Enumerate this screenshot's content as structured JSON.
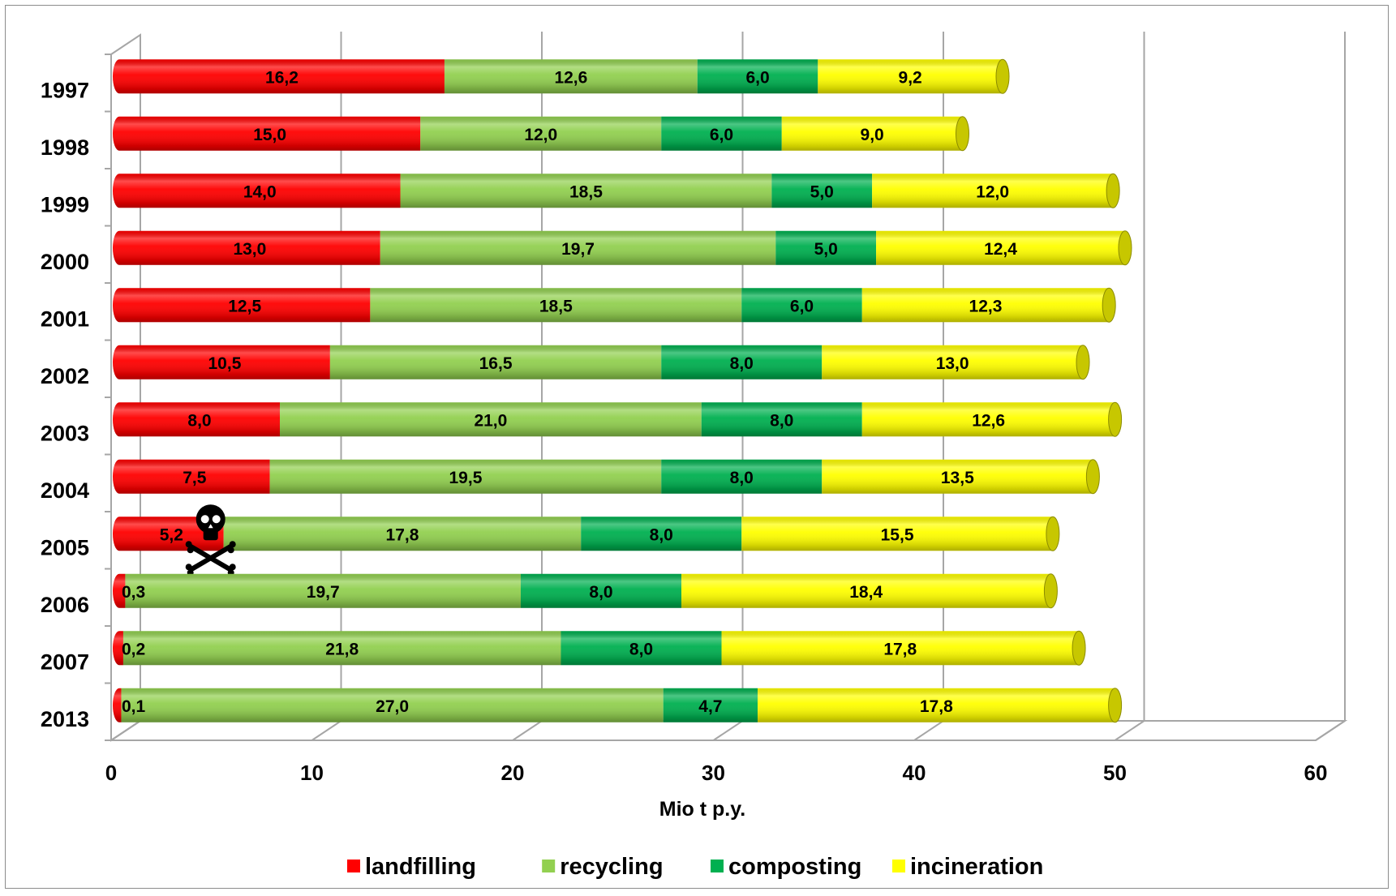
{
  "chart_data": {
    "type": "bar",
    "orientation": "horizontal",
    "stacked": true,
    "three_d": true,
    "categories": [
      "1997",
      "1998",
      "1999",
      "2000",
      "2001",
      "2002",
      "2003",
      "2004",
      "2005",
      "2006",
      "2007",
      "2013"
    ],
    "series": [
      {
        "name": "landfilling",
        "color": "#ff0000",
        "values": [
          16.2,
          15.0,
          14.0,
          13.0,
          12.5,
          10.5,
          8.0,
          7.5,
          5.2,
          0.3,
          0.2,
          0.1
        ],
        "labels": [
          "16,2",
          "15,0",
          "14,0",
          "13,0",
          "12,5",
          "10,5",
          "8,0",
          "7,5",
          "5,2",
          "0,3",
          "0,2",
          "0,1"
        ]
      },
      {
        "name": "recycling",
        "color": "#92d050",
        "values": [
          12.6,
          12.0,
          18.5,
          19.7,
          18.5,
          16.5,
          21.0,
          19.5,
          17.8,
          19.7,
          21.8,
          27.0
        ],
        "labels": [
          "12,6",
          "12,0",
          "18,5",
          "19,7",
          "18,5",
          "16,5",
          "21,0",
          "19,5",
          "17,8",
          "19,7",
          "21,8",
          "27,0"
        ]
      },
      {
        "name": "composting",
        "color": "#00b050",
        "values": [
          6.0,
          6.0,
          5.0,
          5.0,
          6.0,
          8.0,
          8.0,
          8.0,
          8.0,
          8.0,
          8.0,
          4.7
        ],
        "labels": [
          "6,0",
          "6,0",
          "5,0",
          "5,0",
          "6,0",
          "8,0",
          "8,0",
          "8,0",
          "8,0",
          "8,0",
          "8,0",
          "4,7"
        ]
      },
      {
        "name": "incineration",
        "color": "#ffff00",
        "values": [
          9.2,
          9.0,
          12.0,
          12.4,
          12.3,
          13.0,
          12.6,
          13.5,
          15.5,
          18.4,
          17.8,
          17.8
        ],
        "labels": [
          "9,2",
          "9,0",
          "12,0",
          "12,4",
          "12,3",
          "13,0",
          "12,6",
          "13,5",
          "15,5",
          "18,4",
          "17,8",
          "17,8"
        ]
      }
    ],
    "x_ticks": [
      "0",
      "10",
      "20",
      "30",
      "40",
      "50",
      "60"
    ],
    "xlim": [
      0,
      60
    ],
    "xlabel": "Mio t p.y.",
    "ylabel": "",
    "title": "",
    "grid": true,
    "legend_position": "bottom",
    "annotation": {
      "category": "2005",
      "icon": "skull-crossbones-icon"
    }
  }
}
